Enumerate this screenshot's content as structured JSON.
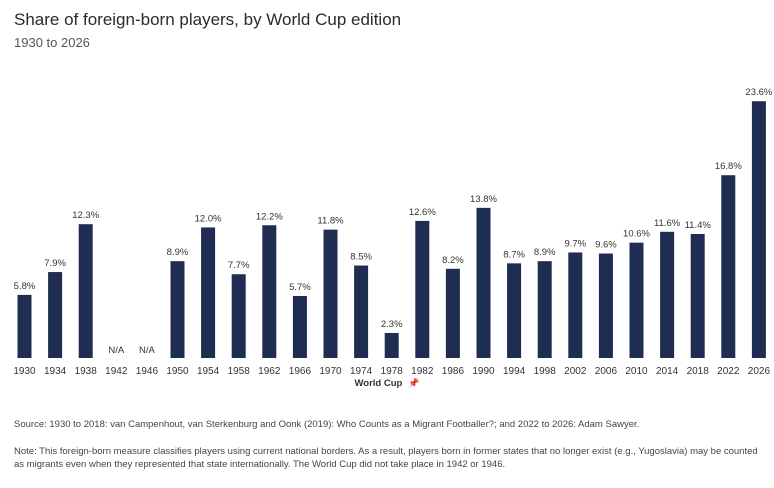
{
  "title": "Share of foreign-born players, by World Cup edition",
  "subtitle": "1930 to 2026",
  "source": "Source: 1930 to 2018: van Campenhout, van Sterkenburg and Oonk (2019): Who Counts as a Migrant Footballer?; and 2022 to 2026: Adam Sawyer.",
  "note": "Note: This foreign-born measure classifies players using current national borders. As a result, players born in former states that no longer exist (e.g., Yugoslavia) may be counted as migrants even when they represented that state internationally. The World Cup did not take place in 1942 or 1946.",
  "icons": {
    "xaxis_icon": "pin-icon"
  },
  "colors": {
    "bar": "#1f2d52",
    "label": "#333333",
    "axis": "#999999"
  },
  "chart_data": {
    "type": "bar",
    "xlabel": "World Cup",
    "ylabel": "",
    "ylim": [
      0,
      25
    ],
    "grid": false,
    "categories": [
      "1930",
      "1934",
      "1938",
      "1942",
      "1946",
      "1950",
      "1954",
      "1958",
      "1962",
      "1966",
      "1970",
      "1974",
      "1978",
      "1982",
      "1986",
      "1990",
      "1994",
      "1998",
      "2002",
      "2006",
      "2010",
      "2014",
      "2018",
      "2022",
      "2026"
    ],
    "values": [
      5.8,
      7.9,
      12.3,
      null,
      null,
      8.9,
      12.0,
      7.7,
      12.2,
      5.7,
      11.8,
      8.5,
      2.3,
      12.6,
      8.2,
      13.8,
      8.7,
      8.9,
      9.7,
      9.6,
      10.6,
      11.6,
      11.4,
      16.8,
      23.6
    ],
    "labels": [
      "5.8%",
      "7.9%",
      "12.3%",
      "N/A",
      "N/A",
      "8.9%",
      "12.0%",
      "7.7%",
      "12.2%",
      "5.7%",
      "11.8%",
      "8.5%",
      "2.3%",
      "12.6%",
      "8.2%",
      "13.8%",
      "8.7%",
      "8.9%",
      "9.7%",
      "9.6%",
      "10.6%",
      "11.6%",
      "11.4%",
      "16.8%",
      "23.6%"
    ]
  }
}
